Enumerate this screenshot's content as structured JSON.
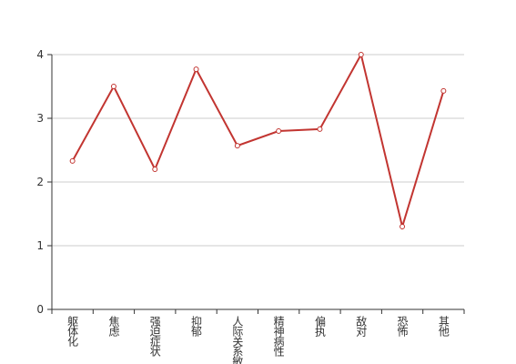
{
  "chart_data": {
    "type": "line",
    "categories": [
      "躯体化",
      "焦虑",
      "强迫症状",
      "抑郁",
      "人际关系敏感",
      "精神病性",
      "偏执",
      "敌对",
      "恐怖",
      "其他"
    ],
    "values": [
      2.33,
      3.5,
      2.2,
      3.77,
      2.57,
      2.8,
      2.83,
      4.0,
      1.3,
      3.43
    ],
    "color": "#c23531",
    "ylim": [
      0,
      4
    ],
    "yticks": [
      0,
      1,
      2,
      3,
      4
    ],
    "grid": true
  }
}
